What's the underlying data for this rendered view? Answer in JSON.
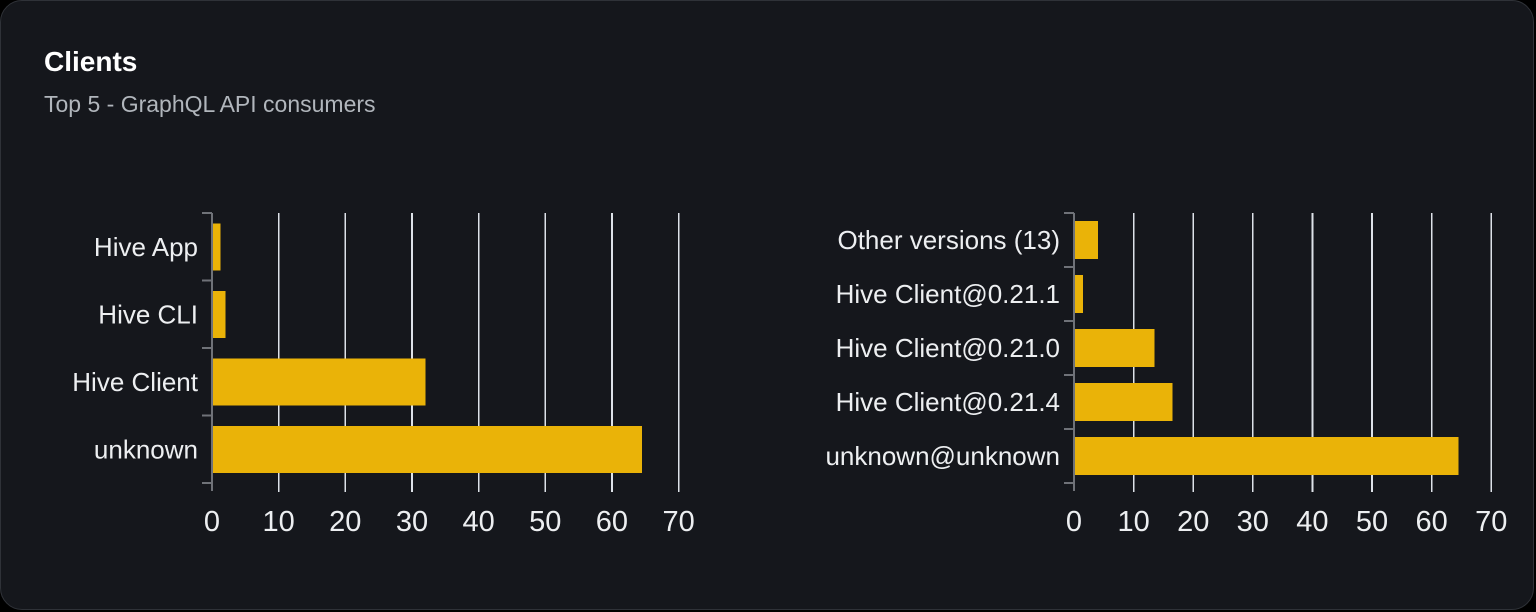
{
  "card": {
    "title": "Clients",
    "subtitle": "Top 5 - GraphQL API consumers"
  },
  "colors": {
    "card_background": "#15171c",
    "card_border": "#2f3238",
    "bar_fill": "#eab308",
    "grid_line": "#dde2e8",
    "axis_line": "#6f7278",
    "chart_text": "#edeff1",
    "title_text": "#ffffff",
    "subtitle_text": "#b1b6bc"
  },
  "chart_data": [
    {
      "type": "bar",
      "orientation": "horizontal",
      "name": "clients-by-name",
      "categories": [
        "Hive App",
        "Hive CLI",
        "Hive Client",
        "unknown"
      ],
      "category_order": "top-to-bottom",
      "values": [
        1.3,
        2,
        32,
        64.5
      ],
      "xlim": [
        0,
        70
      ],
      "x_ticks": [
        0,
        10,
        20,
        30,
        40,
        50,
        60,
        70
      ],
      "grid": true,
      "legend": false,
      "title": "",
      "xlabel": "",
      "ylabel": ""
    },
    {
      "type": "bar",
      "orientation": "horizontal",
      "name": "clients-by-version",
      "categories": [
        "Other versions (13)",
        "Hive Client@0.21.1",
        "Hive Client@0.21.0",
        "Hive Client@0.21.4",
        "unknown@unknown"
      ],
      "category_order": "top-to-bottom",
      "values": [
        4,
        1.5,
        13.5,
        16.5,
        64.5
      ],
      "xlim": [
        0,
        70
      ],
      "x_ticks": [
        0,
        10,
        20,
        30,
        40,
        50,
        60,
        70
      ],
      "grid": true,
      "legend": false,
      "title": "",
      "xlabel": "",
      "ylabel": ""
    }
  ]
}
